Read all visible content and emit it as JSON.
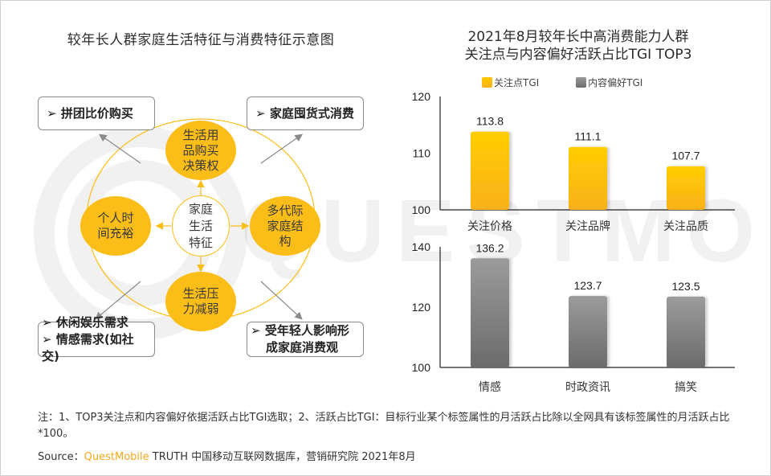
{
  "left": {
    "title": "较年长人群家庭生活特征与消费特征示意图",
    "center_node": "家庭生活特征",
    "nodes": {
      "top": "生活用品购买决策权",
      "left": "个人时间充裕",
      "right": "多代际家庭结构",
      "bottom": "生活压力减弱"
    },
    "boxes": {
      "top_left": [
        "拼团比价购买"
      ],
      "top_right": [
        "家庭囤货式消费"
      ],
      "bottom_left": [
        "休闲娱乐需求",
        "情感需求(如社交)"
      ],
      "bottom_right": [
        "受年轻人影响形",
        "成家庭消费观"
      ]
    },
    "bullet": "➢",
    "colors": {
      "node": "#fbbd17",
      "arrow": "#8a8a8a"
    }
  },
  "right": {
    "title_line1": "2021年8月较年长中高消费能力人群",
    "title_line2": "关注点与内容偏好活跃占比TGI TOP3"
  },
  "chart_data": [
    {
      "type": "bar",
      "title": "关注点TGI",
      "categories": [
        "关注价格",
        "关注品牌",
        "关注品质"
      ],
      "values": [
        113.8,
        111.1,
        107.7
      ],
      "value_labels": [
        "113.8",
        "111.1",
        "107.7"
      ],
      "yticks": [
        "100",
        "110",
        "120"
      ],
      "ylim": [
        100,
        120
      ],
      "color": "#fcc40d",
      "legend": "关注点TGI",
      "xlabel": "",
      "ylabel": ""
    },
    {
      "type": "bar",
      "title": "内容偏好TGI",
      "categories": [
        "情感",
        "时政资讯",
        "搞笑"
      ],
      "values": [
        136.2,
        123.7,
        123.5
      ],
      "value_labels": [
        "136.2",
        "123.7",
        "123.5"
      ],
      "yticks": [
        "100",
        "120",
        "140"
      ],
      "ylim": [
        100,
        140
      ],
      "color": "#8a8a8a",
      "legend": "内容偏好TGI",
      "xlabel": "",
      "ylabel": ""
    }
  ],
  "legend": [
    {
      "label": "关注点TGI",
      "color": "#fcc40d"
    },
    {
      "label": "内容偏好TGI",
      "color": "#8a8a8a"
    }
  ],
  "footer": {
    "note": "注：1、TOP3关注点和内容偏好依据活跃占比TGI选取；2、活跃占比TGI：目标行业某个标签属性的月活跃占比除以全网具有该标签属性的月活跃占比*100。",
    "source_prefix": "Source：",
    "source_brand": "QuestMobile",
    "source_rest": " TRUTH 中国移动互联网数据库，营销研究院 2021年8月"
  },
  "watermark": "QUESTMOBILE"
}
